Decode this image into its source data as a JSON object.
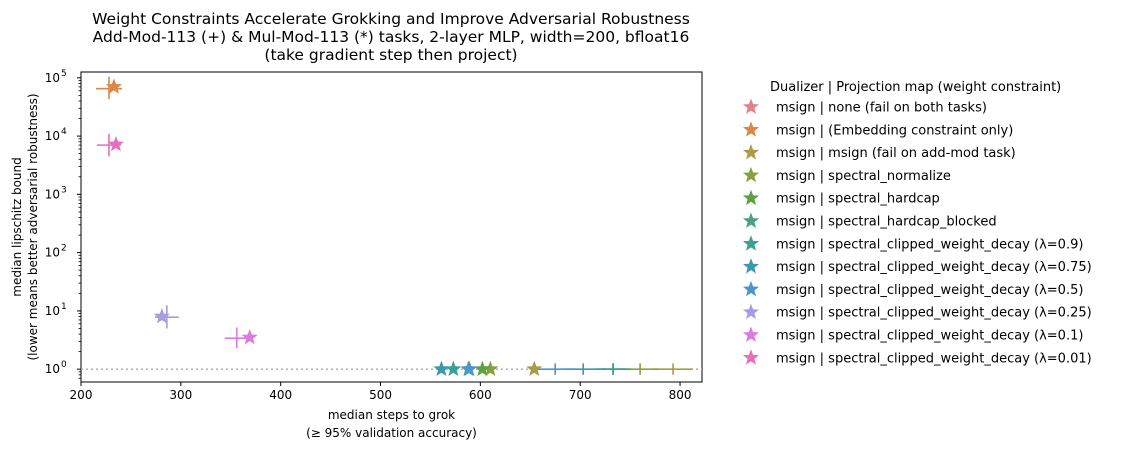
{
  "chart_data": {
    "type": "scatter",
    "title_lines": [
      "Weight Constraints Accelerate Grokking and Improve Adversarial Robustness",
      "Add-Mod-113 (+) & Mul-Mod-113 (*) tasks, 2-layer MLP, width=200, bfloat16",
      "(take gradient step then project)"
    ],
    "xlabel_lines": [
      "median steps to grok",
      "(≥ 95% validation accuracy)"
    ],
    "ylabel_lines": [
      "median lipschitz bound",
      "(lower means better adversarial robustness)"
    ],
    "xlim": [
      200,
      822
    ],
    "ylog": true,
    "ylim_log10": [
      -0.22,
      5.1
    ],
    "x_ticks": [
      200,
      300,
      400,
      500,
      600,
      700,
      800
    ],
    "y_ticks": [
      {
        "label": "10",
        "exp": "0",
        "value": 1
      },
      {
        "label": "10",
        "exp": "1",
        "value": 10
      },
      {
        "label": "10",
        "exp": "2",
        "value": 100
      },
      {
        "label": "10",
        "exp": "3",
        "value": 1000
      },
      {
        "label": "10",
        "exp": "4",
        "value": 10000
      },
      {
        "label": "10",
        "exp": "5",
        "value": 100000
      }
    ],
    "reference_line_y": 1,
    "legend_title": "Dualizer | Projection map (weight constraint)",
    "legend_placement": "outside-right",
    "series": [
      {
        "name": "msign | none (fail on both tasks)",
        "color": "#e0818e",
        "points": []
      },
      {
        "name": "msign | (Embedding constraint only)",
        "color": "#d98847",
        "points": [
          {
            "x": 233,
            "y": 70000
          }
        ],
        "crosses": [
          {
            "x": 228,
            "y": 65000,
            "xerr": 13,
            "yerr_lo": 43000,
            "yerr_hi": 105000
          }
        ]
      },
      {
        "name": "msign | msign (fail on add-mod task)",
        "color": "#ab9b45",
        "points": [
          {
            "x": 654,
            "y": 1
          }
        ],
        "crosses": [
          {
            "x": 793,
            "y": 1,
            "xerr": 20,
            "yerr_lo": 0.8,
            "yerr_hi": 1.26
          }
        ]
      },
      {
        "name": "msign | spectral_normalize",
        "color": "#89a13d",
        "points": [
          {
            "x": 610,
            "y": 1
          }
        ],
        "crosses": [
          {
            "x": 760,
            "y": 1,
            "xerr": 18,
            "yerr_lo": 0.8,
            "yerr_hi": 1.26
          }
        ]
      },
      {
        "name": "msign | spectral_hardcap",
        "color": "#59a340",
        "points": [
          {
            "x": 602,
            "y": 1
          }
        ],
        "crosses": [
          {
            "x": 733,
            "y": 1,
            "xerr": 18,
            "yerr_lo": 0.8,
            "yerr_hi": 1.26
          }
        ]
      },
      {
        "name": "msign | spectral_hardcap_blocked",
        "color": "#45a483",
        "points": [
          {
            "x": 588,
            "y": 1
          }
        ],
        "crosses": [
          {
            "x": 733,
            "y": 1,
            "xerr": 15,
            "yerr_lo": 0.8,
            "yerr_hi": 1.26
          }
        ]
      },
      {
        "name": "msign | spectral_clipped_weight_decay (λ=0.9)",
        "color": "#3aa093",
        "points": [
          {
            "x": 573,
            "y": 1
          }
        ],
        "crosses": [
          {
            "x": 733,
            "y": 1,
            "xerr": 12,
            "yerr_lo": 0.8,
            "yerr_hi": 1.26
          }
        ]
      },
      {
        "name": "msign | spectral_clipped_weight_decay (λ=0.75)",
        "color": "#3c98ad",
        "points": [
          {
            "x": 561,
            "y": 1
          }
        ],
        "crosses": [
          {
            "x": 703,
            "y": 1,
            "xerr": 22,
            "yerr_lo": 0.8,
            "yerr_hi": 1.26
          }
        ]
      },
      {
        "name": "msign | spectral_clipped_weight_decay (λ=0.5)",
        "color": "#4a97d0",
        "points": [
          {
            "x": 589,
            "y": 1
          }
        ],
        "crosses": [
          {
            "x": 675,
            "y": 1,
            "xerr": 20,
            "yerr_lo": 0.8,
            "yerr_hi": 1.26
          }
        ]
      },
      {
        "name": "msign | spectral_clipped_weight_decay (λ=0.25)",
        "color": "#a99ae4",
        "points": [
          {
            "x": 281,
            "y": 8
          }
        ],
        "crosses": [
          {
            "x": 286,
            "y": 7.8,
            "xerr": 12,
            "yerr_lo": 5,
            "yerr_hi": 12.5
          }
        ]
      },
      {
        "name": "msign | spectral_clipped_weight_decay (λ=0.1)",
        "color": "#dc7ae0",
        "points": [
          {
            "x": 369,
            "y": 3.5
          }
        ],
        "crosses": [
          {
            "x": 356,
            "y": 3.4,
            "xerr": 12,
            "yerr_lo": 2.3,
            "yerr_hi": 5.2
          }
        ]
      },
      {
        "name": "msign | spectral_clipped_weight_decay (λ=0.01)",
        "color": "#e66fbd",
        "points": [
          {
            "x": 235,
            "y": 7200
          }
        ],
        "crosses": [
          {
            "x": 228,
            "y": 7000,
            "xerr": 12,
            "yerr_lo": 4500,
            "yerr_hi": 11000
          }
        ]
      }
    ]
  }
}
